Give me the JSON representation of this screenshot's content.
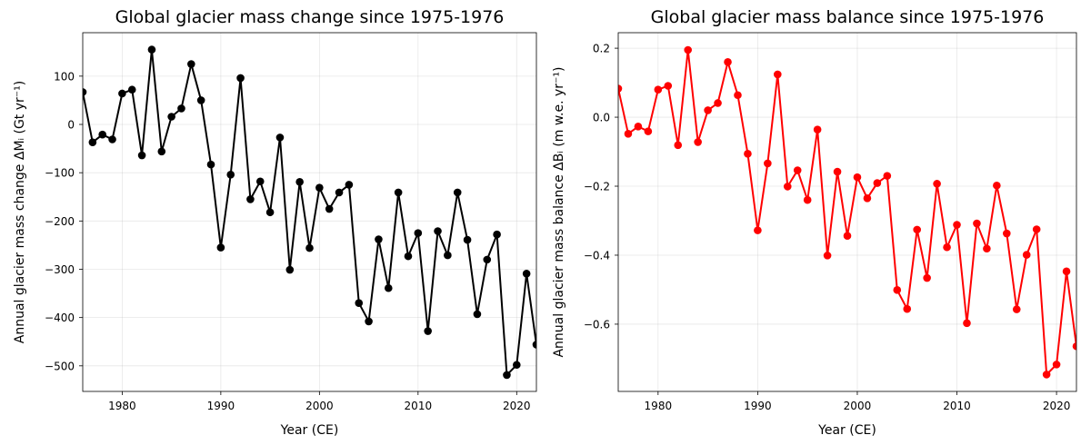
{
  "chart_data": [
    {
      "type": "line",
      "title": "Global glacier mass change since 1975-1976",
      "xlabel": "Year (CE)",
      "ylabel": "Annual glacier mass change ΔMᵢ (Gt yr⁻¹)",
      "xlim": [
        1976,
        2022
      ],
      "ylim": [
        -553,
        190
      ],
      "xticks": [
        1980,
        1990,
        2000,
        2010,
        2020
      ],
      "yticks": [
        100,
        0,
        -100,
        -200,
        -300,
        -400,
        -500
      ],
      "ytick_labels": [
        "100",
        "0",
        "−100",
        "−200",
        "−300",
        "−400",
        "−500"
      ],
      "grid": true,
      "series": [
        {
          "color": "#000000",
          "marker": "circle",
          "x": [
            1976,
            1977,
            1978,
            1979,
            1980,
            1981,
            1982,
            1983,
            1984,
            1985,
            1986,
            1987,
            1988,
            1989,
            1990,
            1991,
            1992,
            1993,
            1994,
            1995,
            1996,
            1997,
            1998,
            1999,
            2000,
            2001,
            2002,
            2003,
            2004,
            2005,
            2006,
            2007,
            2008,
            2009,
            2010,
            2011,
            2012,
            2013,
            2014,
            2015,
            2016,
            2017,
            2018,
            2019,
            2020,
            2021,
            2022
          ],
          "values": [
            67,
            -37,
            -21,
            -31,
            64,
            72,
            -64,
            155,
            -56,
            16,
            33,
            125,
            50,
            -83,
            -255,
            -104,
            96,
            -155,
            -118,
            -182,
            -27,
            -301,
            -119,
            -256,
            -131,
            -175,
            -141,
            -125,
            -370,
            -408,
            -238,
            -339,
            -141,
            -273,
            -225,
            -428,
            -221,
            -271,
            -141,
            -239,
            -393,
            -280,
            -228,
            -519,
            -498,
            -309,
            -456
          ]
        }
      ]
    },
    {
      "type": "line",
      "title": "Global glacier mass balance since 1975-1976",
      "xlabel": "Year (CE)",
      "ylabel": "Annual glacier mass balance ΔBᵢ (m w.e. yr⁻¹)",
      "xlim": [
        1976,
        2022
      ],
      "ylim": [
        -0.795,
        0.245
      ],
      "xticks": [
        1980,
        1990,
        2000,
        2010,
        2020
      ],
      "yticks": [
        0.2,
        0.0,
        -0.2,
        -0.4,
        -0.6
      ],
      "ytick_labels": [
        "0.2",
        "0.0",
        "−0.2",
        "−0.4",
        "−0.6"
      ],
      "grid": true,
      "series": [
        {
          "color": "#ff0000",
          "marker": "circle",
          "x": [
            1976,
            1977,
            1978,
            1979,
            1980,
            1981,
            1982,
            1983,
            1984,
            1985,
            1986,
            1987,
            1988,
            1989,
            1990,
            1991,
            1992,
            1993,
            1994,
            1995,
            1996,
            1997,
            1998,
            1999,
            2000,
            2001,
            2002,
            2003,
            2004,
            2005,
            2006,
            2007,
            2008,
            2009,
            2010,
            2011,
            2012,
            2013,
            2014,
            2015,
            2016,
            2017,
            2018,
            2019,
            2020,
            2021,
            2022
          ],
          "values": [
            0.083,
            -0.048,
            -0.027,
            -0.041,
            0.08,
            0.091,
            -0.081,
            0.195,
            -0.072,
            0.02,
            0.041,
            0.16,
            0.064,
            -0.106,
            -0.328,
            -0.134,
            0.124,
            -0.201,
            -0.154,
            -0.24,
            -0.036,
            -0.401,
            -0.158,
            -0.344,
            -0.174,
            -0.235,
            -0.191,
            -0.17,
            -0.501,
            -0.556,
            -0.326,
            -0.466,
            -0.193,
            -0.377,
            -0.312,
            -0.597,
            -0.308,
            -0.381,
            -0.198,
            -0.337,
            -0.557,
            -0.399,
            -0.325,
            -0.746,
            -0.717,
            -0.447,
            -0.664
          ]
        }
      ]
    }
  ]
}
